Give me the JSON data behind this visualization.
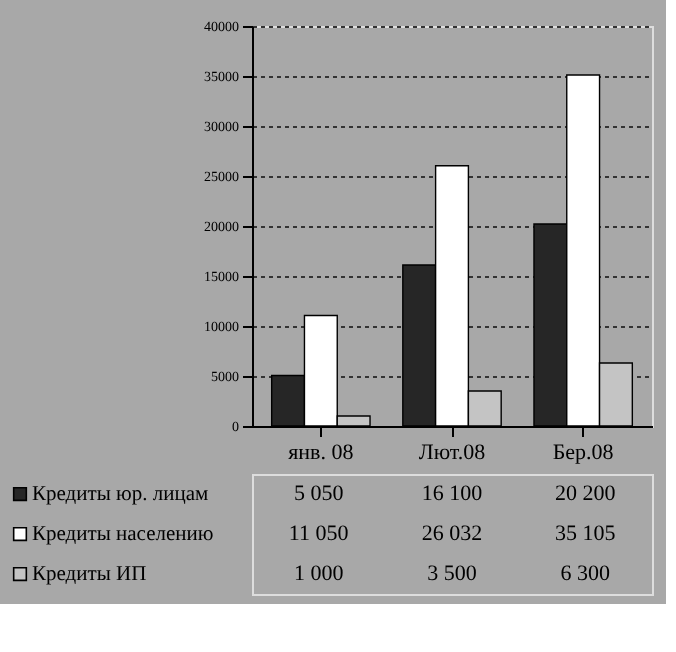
{
  "chart_data": {
    "type": "bar",
    "categories": [
      "янв. 08",
      "Лют.08",
      "Бер.08"
    ],
    "series": [
      {
        "name": "Кредиты юр. лицам",
        "color": "#262626",
        "values": [
          5050,
          16100,
          20200
        ],
        "value_labels": [
          "5 050",
          "16 100",
          "20 200"
        ]
      },
      {
        "name": "Кредиты населению",
        "color": "#ffffff",
        "values": [
          11050,
          26032,
          35105
        ],
        "value_labels": [
          "11 050",
          "26 032",
          "35 105"
        ]
      },
      {
        "name": "Кредиты ИП",
        "color": "#c4c4c4",
        "values": [
          1000,
          3500,
          6300
        ],
        "value_labels": [
          "1 000",
          "3 500",
          "6 300"
        ]
      }
    ],
    "ylim": [
      0,
      40000
    ],
    "yticks": [
      0,
      5000,
      10000,
      15000,
      20000,
      25000,
      30000,
      35000,
      40000
    ],
    "grid": "y",
    "legend": "bottom"
  }
}
